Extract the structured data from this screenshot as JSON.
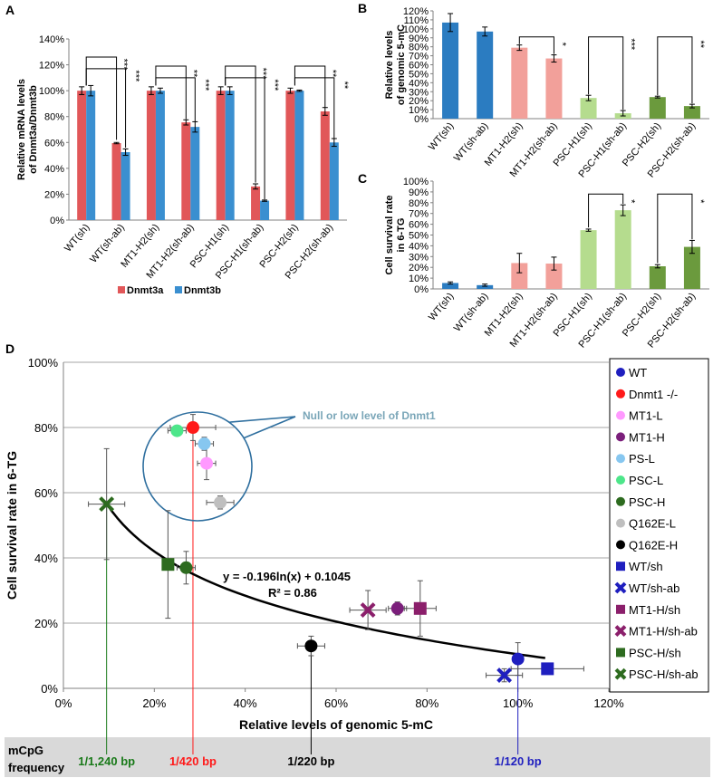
{
  "chart_data": [
    {
      "panel": "A",
      "type": "bar",
      "ylabel": "Relative mRNA levels of Dnmt3a/Dnmt3b",
      "ylabel_lines": [
        "Relative mRNA levels",
        "of Dnmt3a/Dnmt3b"
      ],
      "ylim": [
        0,
        140
      ],
      "yticks": [
        "0%",
        "20%",
        "40%",
        "60%",
        "80%",
        "100%",
        "120%",
        "140%"
      ],
      "categories": [
        "WT(sh)",
        "WT(sh-ab)",
        "MT1-H2(sh)",
        "MT1-H2(sh-ab)",
        "PSC-H1(sh)",
        "PSC-H1(sh-ab)",
        "PSC-H2(sh)",
        "PSC-H2(sh-ab)"
      ],
      "series": [
        {
          "name": "Dnmt3a",
          "color": "#e15759",
          "values": [
            100,
            59.5,
            100,
            75.5,
            100,
            26,
            100,
            84
          ],
          "errors": [
            3,
            0.5,
            3,
            2,
            3,
            2,
            2,
            3
          ]
        },
        {
          "name": "Dnmt3b",
          "color": "#3a8fd0",
          "values": [
            100,
            52.5,
            100,
            72,
            100,
            15,
            100,
            60
          ],
          "errors": [
            4,
            2.5,
            2,
            4,
            3,
            0.5,
            0.5,
            3
          ]
        }
      ],
      "significance": [
        "***",
        "***",
        "**",
        "***",
        "***",
        "***",
        "**",
        "**"
      ]
    },
    {
      "panel": "B",
      "type": "bar",
      "ylabel": "Relative levels of genomic 5-mC",
      "ylabel_lines": [
        "Relative levels",
        "of genomic 5-mC"
      ],
      "ylim": [
        0,
        120
      ],
      "yticks": [
        "0%",
        "10%",
        "20%",
        "30%",
        "40%",
        "50%",
        "60%",
        "70%",
        "80%",
        "90%",
        "100%",
        "110%",
        "120%"
      ],
      "categories": [
        "WT(sh)",
        "WT(sh-ab)",
        "MT1-H2(sh)",
        "MT1-H2(sh-ab)",
        "PSC-H1(sh)",
        "PSC-H1(sh-ab)",
        "PSC-H2(sh)",
        "PSC-H2(sh-ab)"
      ],
      "values": [
        107,
        97,
        79,
        67,
        23,
        6,
        24,
        14
      ],
      "errors": [
        10,
        5,
        3,
        4,
        3,
        3,
        1,
        2
      ],
      "colors": [
        "#2b7cc1",
        "#2b7cc1",
        "#f2a09a",
        "#f2a09a",
        "#b5dc8e",
        "#b5dc8e",
        "#6b9a3d",
        "#6b9a3d"
      ],
      "significance": [
        "*",
        "***",
        "**"
      ]
    },
    {
      "panel": "C",
      "type": "bar",
      "ylabel": "Cell survival rate in 6-TG",
      "ylabel_lines": [
        "Cell survival rate",
        "in 6-TG"
      ],
      "ylim": [
        0,
        100
      ],
      "yticks": [
        "0%",
        "10%",
        "20%",
        "30%",
        "40%",
        "50%",
        "60%",
        "70%",
        "80%",
        "90%",
        "100%"
      ],
      "categories": [
        "WT(sh)",
        "WT(sh-ab)",
        "MT1-H2(sh)",
        "MT1-H2(sh-ab)",
        "PSC-H1(sh)",
        "PSC-H1(sh-ab)",
        "PSC-H2(sh)",
        "PSC-H2(sh-ab)"
      ],
      "values": [
        5.5,
        3.5,
        24,
        23.5,
        54.5,
        73,
        21,
        39
      ],
      "errors": [
        1,
        1,
        9,
        6,
        1,
        5,
        1.5,
        6
      ],
      "colors": [
        "#2b7cc1",
        "#2b7cc1",
        "#f2a09a",
        "#f2a09a",
        "#b5dc8e",
        "#b5dc8e",
        "#6b9a3d",
        "#6b9a3d"
      ],
      "significance": [
        "*",
        "*"
      ]
    },
    {
      "panel": "D",
      "type": "scatter",
      "xlabel": "Relative levels of genomic 5-mC",
      "ylabel": "Cell survival rate in 6-TG",
      "xlim": [
        0,
        120
      ],
      "ylim": [
        0,
        100
      ],
      "xticks": [
        "0%",
        "20%",
        "40%",
        "60%",
        "80%",
        "100%",
        "120%"
      ],
      "yticks": [
        "0%",
        "20%",
        "40%",
        "60%",
        "80%",
        "100%"
      ],
      "callout": "Null or low level of Dnmt1",
      "fit": {
        "equation": "y = -0.196ln(x) + 0.1045",
        "r2": "R² = 0.86",
        "a": -0.196,
        "b": 0.1045,
        "x_from": 9.5,
        "x_to": 106
      },
      "points": [
        {
          "name": "WT",
          "x": 100,
          "y": 9,
          "xerr": 0,
          "yerr": 5,
          "color": "#1f1fbf",
          "marker": "circle"
        },
        {
          "name": "Dnmt1 -/-",
          "x": 28.5,
          "y": 80,
          "xerr": 5,
          "yerr": 4,
          "color": "#ff1a1a",
          "marker": "circle"
        },
        {
          "name": "MT1-L",
          "x": 31.5,
          "y": 69,
          "xerr": 2,
          "yerr": 5,
          "color": "#ff99ff",
          "marker": "circle"
        },
        {
          "name": "MT1-H",
          "x": 73.5,
          "y": 24.5,
          "xerr": 2,
          "yerr": 2,
          "color": "#7b1f7b",
          "marker": "circle"
        },
        {
          "name": "PS-L",
          "x": 31,
          "y": 75,
          "xerr": 2,
          "yerr": 2,
          "color": "#87c7f0",
          "marker": "circle"
        },
        {
          "name": "PSC-L",
          "x": 25,
          "y": 79,
          "xerr": 2,
          "yerr": 1,
          "color": "#4de68a",
          "marker": "circle"
        },
        {
          "name": "PSC-H",
          "x": 27,
          "y": 37,
          "xerr": 2,
          "yerr": 5,
          "color": "#2d6b1f",
          "marker": "circle"
        },
        {
          "name": "Q162E-L",
          "x": 34.5,
          "y": 57,
          "xerr": 3,
          "yerr": 2,
          "color": "#bfbfbf",
          "marker": "circle"
        },
        {
          "name": "Q162E-H",
          "x": 54.5,
          "y": 13,
          "xerr": 3,
          "yerr": 3,
          "color": "#000000",
          "marker": "circle"
        },
        {
          "name": "WT/sh",
          "x": 106.5,
          "y": 6,
          "xerr": 8,
          "yerr": 0,
          "color": "#1f1fbf",
          "marker": "square"
        },
        {
          "name": "WT/sh-ab",
          "x": 97,
          "y": 4,
          "xerr": 4,
          "yerr": 2,
          "color": "#1f1fbf",
          "marker": "x"
        },
        {
          "name": "MT1-H/sh",
          "x": 78.5,
          "y": 24.5,
          "xerr": 3.5,
          "yerr": 8.5,
          "color": "#8b1f6b",
          "marker": "square"
        },
        {
          "name": "MT1-H/sh-ab",
          "x": 67,
          "y": 24,
          "xerr": 4,
          "yerr": 6,
          "color": "#8b1f6b",
          "marker": "x"
        },
        {
          "name": "PSC-H/sh",
          "x": 23,
          "y": 38,
          "xerr": 1,
          "yerr": 16.5,
          "color": "#2d6b1f",
          "marker": "square"
        },
        {
          "name": "PSC-H/sh-ab",
          "x": 9.5,
          "y": 56.5,
          "xerr": 4,
          "yerr": 17,
          "color": "#2d6b1f",
          "marker": "x"
        }
      ],
      "frequency_label": [
        "mCpG",
        "frequency"
      ],
      "frequency_markers": [
        {
          "label": "1/1,240 bp",
          "x": 9.5,
          "y": 56.5,
          "color": "#1a7a1a"
        },
        {
          "label": "1/420 bp",
          "x": 28.5,
          "y": 80,
          "color": "#ff1a1a"
        },
        {
          "label": "1/220 bp",
          "x": 54.5,
          "y": 13,
          "color": "#000000"
        },
        {
          "label": "1/120 bp",
          "x": 100,
          "y": 9,
          "color": "#1f1fbf"
        }
      ]
    }
  ],
  "panel_letters": [
    "A",
    "B",
    "C",
    "D"
  ]
}
